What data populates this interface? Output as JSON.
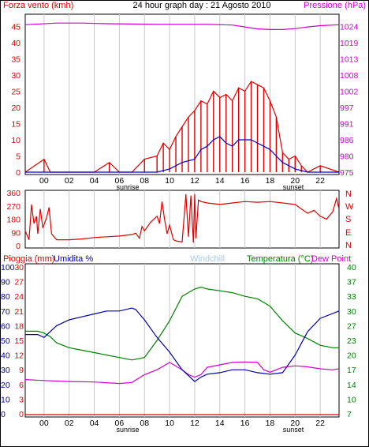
{
  "header": {
    "left_label": "Forza vento (kmh)",
    "title": "24 hour graph day : 21 Agosto 2010",
    "right_label": "Pressione (hPa)"
  },
  "colors": {
    "wind": "#e00000",
    "gust": "#e00000",
    "avg_wind": "#0000cc",
    "pressure": "#d000d0",
    "direction": "#e00000",
    "humidity": "#0000aa",
    "temperature": "#008000",
    "dewpoint": "#d000d0",
    "rain": "#e00000",
    "grid": "#c8c8c8"
  },
  "time_axis": {
    "labels": [
      "00",
      "02",
      "04",
      "06",
      "08",
      "10",
      "12",
      "14",
      "16",
      "18",
      "20",
      "22"
    ],
    "sunrise_label": "sunrise",
    "sunset_label": "sunset"
  },
  "compass": [
    "N",
    "W",
    "S",
    "E",
    "N"
  ],
  "bottom_header": {
    "rain_label": "Pioggia (mm)",
    "humidity_label": "Umidita %",
    "windchill_label": "Windchill",
    "temperature_label": "Temperatura (°C)",
    "dewpoint_label": "Dew Point"
  },
  "chart_data": [
    {
      "type": "line",
      "title": "24 hour graph day : 21 Agosto 2010",
      "x_hours": [
        -1.5,
        23.5
      ],
      "ylabel_left": "Forza vento (kmh)",
      "ylabel_right": "Pressione (hPa)",
      "y_left_ticks": [
        0,
        5,
        10,
        15,
        20,
        25,
        30,
        35,
        40,
        45
      ],
      "y_right_ticks": [
        975,
        980,
        986,
        991,
        997,
        1002,
        1008,
        1013,
        1019,
        1024
      ],
      "ylim_left": [
        0,
        48
      ],
      "series": [
        {
          "name": "Pressione (hPa)",
          "axis": "right",
          "x": [
            -1.5,
            1,
            3,
            5,
            7,
            9,
            11,
            13,
            15,
            16,
            17,
            18,
            19,
            20,
            21,
            22,
            23.5
          ],
          "y": [
            1024.5,
            1025.0,
            1025.0,
            1024.8,
            1024.7,
            1024.6,
            1024.6,
            1024.6,
            1024.4,
            1023.8,
            1023.2,
            1023.0,
            1023.0,
            1023.3,
            1023.8,
            1024.2,
            1024.5
          ]
        },
        {
          "name": "Forza vento (kmh)",
          "axis": "left",
          "x": [
            -1.5,
            0,
            0.5,
            2,
            4,
            5.2,
            6,
            7,
            8,
            9,
            9.5,
            10,
            10.5,
            11,
            11.5,
            12,
            12.5,
            13,
            13.5,
            14,
            14.5,
            15,
            15.5,
            16,
            16.5,
            17,
            17.5,
            18,
            18.5,
            19,
            19.5,
            20,
            20.5,
            21,
            22,
            23.5
          ],
          "y": [
            0,
            4,
            0,
            0,
            0,
            3,
            0,
            0,
            4,
            5,
            9,
            7,
            11,
            14,
            17,
            19,
            22,
            21,
            25,
            23,
            24,
            22,
            26,
            25,
            28,
            27,
            26,
            22,
            17,
            6,
            4,
            5,
            2,
            0,
            2,
            0
          ]
        },
        {
          "name": "Media vento",
          "axis": "left",
          "x": [
            -1.5,
            0,
            2,
            4,
            6,
            8,
            9,
            10,
            11,
            12,
            12.5,
            13,
            13.5,
            14,
            14.5,
            15,
            15.5,
            16,
            16.5,
            17,
            17.5,
            18,
            18.5,
            19,
            19.5,
            20,
            21,
            23.5
          ],
          "y": [
            0,
            0,
            0,
            0,
            0,
            0,
            0,
            1,
            3,
            4,
            7,
            8,
            10,
            11,
            9,
            8,
            10,
            10,
            10,
            9,
            8,
            7,
            5,
            3,
            2,
            1,
            0,
            0
          ]
        }
      ]
    },
    {
      "type": "line",
      "y_ticks": [
        0,
        90,
        180,
        270,
        360
      ],
      "ylim": [
        0,
        360
      ],
      "series": [
        {
          "name": "Direzione vento",
          "x": [
            -1.5,
            -1.2,
            -1,
            -0.8,
            -0.6,
            -0.5,
            -0.3,
            -0.1,
            0.2,
            0.4,
            0.6,
            1,
            2,
            3,
            4,
            5,
            6,
            7,
            7.3,
            7.6,
            7.8,
            8,
            8.5,
            9,
            9.2,
            9.4,
            9.6,
            9.8,
            10,
            10.3,
            10.6,
            11,
            11.3,
            11.5,
            11.7,
            11.9,
            12,
            12.1,
            12.3,
            12.5,
            13,
            14,
            15,
            16,
            17,
            18,
            19,
            20,
            20.5,
            21,
            21.5,
            22,
            22.5,
            23,
            23.3,
            23.5
          ],
          "y": [
            100,
            40,
            280,
            150,
            200,
            80,
            250,
            120,
            190,
            260,
            80,
            40,
            40,
            45,
            55,
            60,
            65,
            75,
            85,
            50,
            130,
            100,
            160,
            200,
            150,
            300,
            180,
            80,
            140,
            40,
            30,
            25,
            350,
            60,
            340,
            20,
            350,
            50,
            310,
            300,
            290,
            280,
            290,
            300,
            295,
            300,
            290,
            280,
            250,
            220,
            240,
            200,
            180,
            230,
            320,
            250
          ]
        }
      ]
    },
    {
      "type": "line",
      "ylabel_left": "Pioggia (mm) / Umidita %",
      "ylabel_right": "Temperatura (°C)",
      "y_rain_ticks": [
        0,
        3,
        6,
        9,
        12,
        15,
        18,
        21,
        24,
        27,
        30
      ],
      "y_humidity_ticks": [
        0,
        10,
        20,
        30,
        40,
        50,
        60,
        70,
        80,
        90,
        100
      ],
      "y_temp_ticks": [
        7,
        10,
        14,
        17,
        20,
        23,
        27,
        30,
        33,
        37,
        40
      ],
      "ylim_temp": [
        7,
        40
      ],
      "series": [
        {
          "name": "Umidita %",
          "axis": "humidity",
          "x": [
            -1.5,
            -0.5,
            0,
            0.5,
            1,
            2,
            3,
            4,
            5,
            6,
            7,
            7.3,
            8,
            9,
            10,
            11,
            11.5,
            12,
            12.5,
            13,
            14,
            15,
            16,
            17,
            18,
            19,
            20,
            21,
            22,
            23.5
          ],
          "y": [
            54,
            54,
            52,
            56,
            60,
            64,
            66,
            68,
            70,
            70,
            72,
            71,
            64,
            52,
            42,
            30,
            26,
            22,
            25,
            27,
            28,
            30,
            30,
            28,
            27,
            28,
            40,
            56,
            65,
            70
          ]
        },
        {
          "name": "Temperatura (°C)",
          "axis": "temp",
          "x": [
            -1.5,
            -0.5,
            0,
            0.5,
            1,
            2,
            3,
            4,
            5,
            6,
            7,
            8,
            9,
            10,
            11,
            12,
            12.5,
            13,
            14,
            15,
            16,
            17,
            18,
            19,
            20,
            21,
            22,
            23,
            23.5
          ],
          "y": [
            25.5,
            25.5,
            25,
            24,
            22.5,
            21.5,
            21,
            20.5,
            20,
            19.5,
            19,
            19.5,
            23,
            28,
            33,
            35,
            35.5,
            35,
            34.5,
            34,
            33,
            32.5,
            31,
            28,
            25,
            23.5,
            22,
            21.5,
            21.5
          ]
        },
        {
          "name": "Dew Point",
          "axis": "temp",
          "x": [
            -1.5,
            0,
            2,
            4,
            6,
            7,
            8,
            9,
            10,
            11,
            11.5,
            12,
            12.5,
            13,
            14,
            15,
            16,
            17,
            17.5,
            18,
            19,
            20,
            21,
            22,
            23,
            23.5
          ],
          "y": [
            15,
            14.8,
            14.6,
            14.5,
            14.2,
            14.4,
            16,
            17,
            18.5,
            17,
            16,
            15.5,
            16,
            17.5,
            18,
            18.5,
            18.6,
            18.5,
            17,
            16.5,
            17.5,
            17.8,
            17.6,
            17.2,
            17,
            17.2
          ]
        },
        {
          "name": "Pioggia (mm)",
          "axis": "rain",
          "x": [
            -1.5,
            23.5
          ],
          "y": [
            0,
            0
          ]
        }
      ]
    }
  ]
}
